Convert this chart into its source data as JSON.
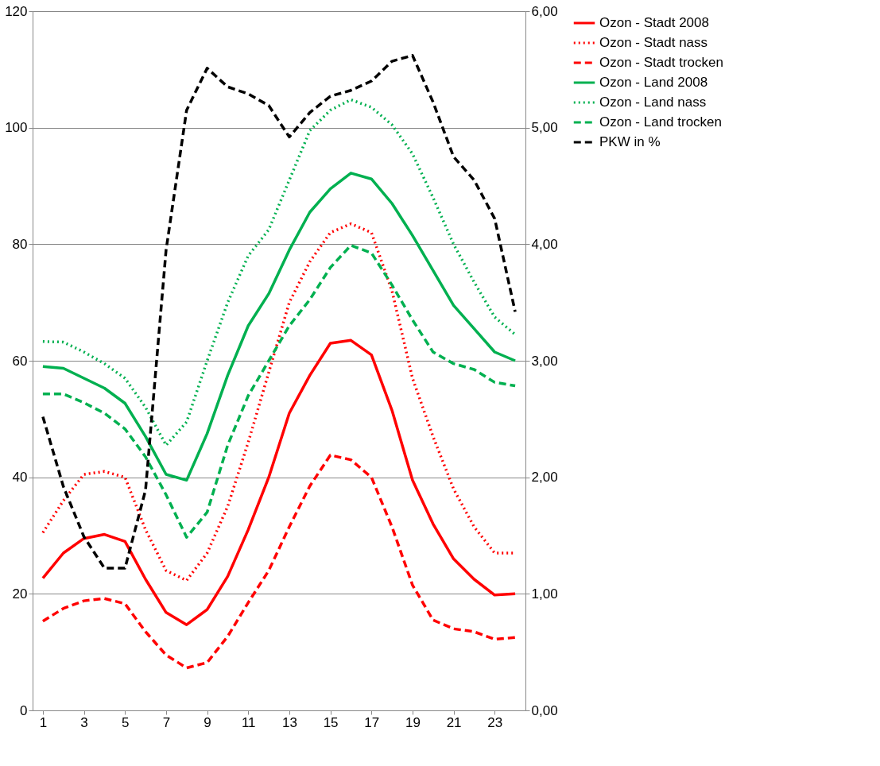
{
  "chart_data": {
    "type": "line",
    "x": [
      1,
      2,
      3,
      4,
      5,
      6,
      7,
      8,
      9,
      10,
      11,
      12,
      13,
      14,
      15,
      16,
      17,
      18,
      19,
      20,
      21,
      22,
      23,
      24
    ],
    "xlim": [
      0.5,
      24.5
    ],
    "xticks": [
      1,
      3,
      5,
      7,
      9,
      11,
      13,
      15,
      17,
      19,
      21,
      23
    ],
    "ylim": [
      0,
      120
    ],
    "yticks": [
      0,
      20,
      40,
      60,
      80,
      100,
      120
    ],
    "y2lim": [
      0,
      6
    ],
    "y2ticks": [
      {
        "value": 0,
        "label": "0,00"
      },
      {
        "value": 1,
        "label": "1,00"
      },
      {
        "value": 2,
        "label": "2,00"
      },
      {
        "value": 3,
        "label": "3,00"
      },
      {
        "value": 4,
        "label": "4,00"
      },
      {
        "value": 5,
        "label": "5,00"
      },
      {
        "value": 6,
        "label": "6,00"
      }
    ],
    "grid": "y",
    "legend": "right",
    "marker": "none",
    "series": [
      {
        "name": "Ozon - Stadt 2008",
        "color": "#ff0000",
        "line_style": "solid",
        "values": [
          22.7,
          27,
          29.5,
          30.2,
          29,
          22.5,
          16.8,
          14.7,
          17.3,
          23,
          31,
          40,
          51,
          57.5,
          63,
          63.5,
          61,
          51.5,
          39.5,
          32,
          26,
          22.5,
          19.8,
          20
        ]
      },
      {
        "name": "Ozon - Stadt nass",
        "color": "#ff0000",
        "line_style": "dotted",
        "values": [
          30.5,
          36,
          40.5,
          41,
          40,
          31,
          24,
          22.3,
          27,
          35,
          46,
          58,
          70,
          77,
          82,
          83.5,
          82,
          72,
          57,
          47,
          38,
          31.5,
          27,
          27
        ]
      },
      {
        "name": "Ozon - Stadt trocken",
        "color": "#ff0000",
        "line_style": "dashed",
        "values": [
          15.3,
          17.5,
          18.8,
          19.2,
          18.3,
          13.5,
          9.5,
          7.3,
          8.2,
          12.7,
          18.5,
          24,
          31.5,
          38.5,
          43.8,
          43,
          40,
          31.5,
          21.5,
          15.5,
          14,
          13.5,
          12.2,
          12.5
        ]
      },
      {
        "name": "Ozon - Land 2008",
        "color": "#00b050",
        "line_style": "solid",
        "values": [
          59,
          58.7,
          57,
          55.3,
          52.7,
          47,
          40.5,
          39.5,
          47.5,
          57.5,
          66,
          71.5,
          79,
          85.5,
          89.5,
          92.2,
          91.2,
          87,
          81.5,
          75.5,
          69.5,
          65.5,
          61.5,
          60
        ]
      },
      {
        "name": "Ozon - Land nass",
        "color": "#00b050",
        "line_style": "dotted",
        "values": [
          63.3,
          63.2,
          61.5,
          59.5,
          57,
          52,
          45.5,
          49.5,
          60,
          70,
          78,
          82.5,
          91,
          99.5,
          103,
          104.8,
          103.5,
          100.5,
          95.5,
          88,
          80,
          73.5,
          67.5,
          64.5
        ]
      },
      {
        "name": "Ozon - Land trocken",
        "color": "#00b050",
        "line_style": "dashed",
        "values": [
          54.3,
          54.3,
          52.8,
          51,
          48.3,
          43.5,
          37,
          29.7,
          34,
          45.5,
          54,
          60,
          66,
          70.5,
          76,
          79.8,
          78.5,
          73,
          67,
          61.5,
          59.5,
          58.5,
          56.3,
          55.7
        ]
      },
      {
        "name": "PKW in %",
        "color": "#000000",
        "line_style": "dashed",
        "axis": "y2",
        "values": [
          2.52,
          1.92,
          1.49,
          1.22,
          1.22,
          1.89,
          3.95,
          5.15,
          5.51,
          5.35,
          5.29,
          5.19,
          4.92,
          5.13,
          5.27,
          5.32,
          5.4,
          5.57,
          5.62,
          5.22,
          4.75,
          4.55,
          4.22,
          3.42
        ]
      }
    ]
  }
}
